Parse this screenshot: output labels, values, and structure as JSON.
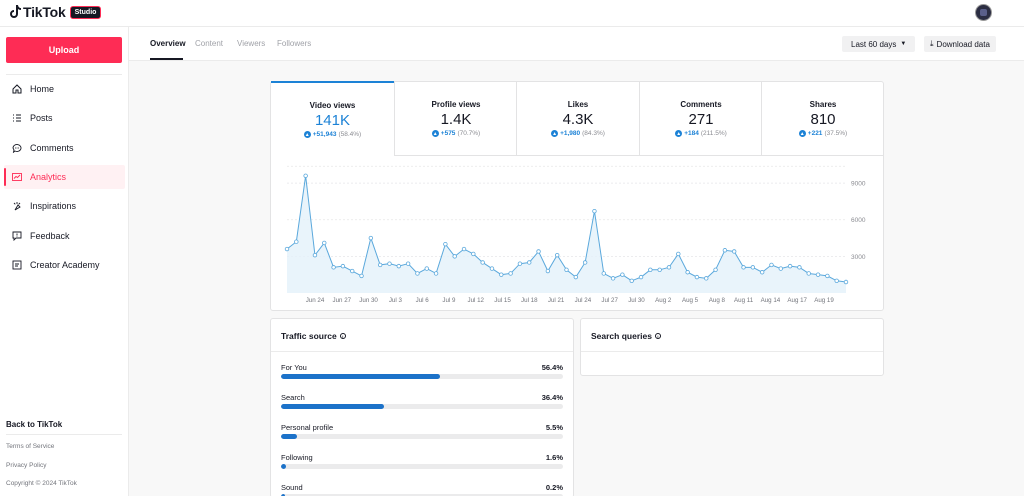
{
  "header": {
    "logo_text": "TikTok",
    "badge": "Studio",
    "avatar_icon": "user-avatar"
  },
  "sidebar": {
    "upload_label": "Upload",
    "items": [
      {
        "label": "Home",
        "icon": "home-icon"
      },
      {
        "label": "Posts",
        "icon": "list-icon"
      },
      {
        "label": "Comments",
        "icon": "comment-icon"
      },
      {
        "label": "Analytics",
        "icon": "analytics-icon",
        "active": true
      },
      {
        "label": "Inspirations",
        "icon": "sparkle-icon"
      },
      {
        "label": "Feedback",
        "icon": "feedback-icon"
      },
      {
        "label": "Creator Academy",
        "icon": "academy-icon"
      }
    ],
    "back_label": "Back to TikTok",
    "footer": [
      "Terms of Service",
      "Privacy Policy",
      "Copyright © 2024 TikTok"
    ]
  },
  "tabs": {
    "items": [
      "Overview",
      "Content",
      "Viewers",
      "Followers"
    ],
    "active": "Overview",
    "range_label": "Last 60 days",
    "download_label": "Download data"
  },
  "metrics": [
    {
      "label": "Video views",
      "value": "141K",
      "delta": "+51,943",
      "pct": "(58.4%)"
    },
    {
      "label": "Profile views",
      "value": "1.4K",
      "delta": "+575",
      "pct": "(70.7%)"
    },
    {
      "label": "Likes",
      "value": "4.3K",
      "delta": "+1,980",
      "pct": "(84.3%)"
    },
    {
      "label": "Comments",
      "value": "271",
      "delta": "+184",
      "pct": "(211.5%)"
    },
    {
      "label": "Shares",
      "value": "810",
      "delta": "+221",
      "pct": "(37.5%)"
    }
  ],
  "chart_data": {
    "type": "area",
    "series": [
      {
        "values": [
          3600,
          4200,
          9600,
          3100,
          4100,
          2100,
          2200,
          1800,
          1400,
          4500,
          2300,
          2400,
          2200,
          2400,
          1600,
          2000,
          1600,
          4000,
          3000,
          3600,
          3200,
          2500,
          2000,
          1500,
          1600,
          2400,
          2500,
          3400,
          1800,
          3100,
          1900,
          1300,
          2500,
          6700,
          1600,
          1200,
          1500,
          1000,
          1300,
          1900,
          1900,
          2100,
          3200,
          1700,
          1300,
          1200,
          1900,
          3500,
          3400,
          2100,
          2100,
          1700,
          2300,
          2000,
          2200,
          2100,
          1600,
          1500,
          1400,
          1000,
          900
        ]
      }
    ],
    "x_ticks": [
      "Jun 24",
      "Jun 27",
      "Jun 30",
      "Jul 3",
      "Jul 6",
      "Jul 9",
      "Jul 12",
      "Jul 15",
      "Jul 18",
      "Jul 21",
      "Jul 24",
      "Jul 27",
      "Jul 30",
      "Aug 2",
      "Aug 5",
      "Aug 8",
      "Aug 11",
      "Aug 14",
      "Aug 17",
      "Aug 19"
    ],
    "y_ticks": [
      "9000",
      "6000",
      "3000"
    ],
    "ylim": [
      0,
      10400
    ],
    "grid": true,
    "color": "#5aa8dc"
  },
  "traffic": {
    "title": "Traffic source",
    "sources": [
      {
        "name": "For You",
        "pct": "56.4%",
        "value": 56.4
      },
      {
        "name": "Search",
        "pct": "36.4%",
        "value": 36.4
      },
      {
        "name": "Personal profile",
        "pct": "5.5%",
        "value": 5.5
      },
      {
        "name": "Following",
        "pct": "1.6%",
        "value": 1.6
      },
      {
        "name": "Sound",
        "pct": "0.2%",
        "value": 0.2
      }
    ]
  },
  "search": {
    "title": "Search queries"
  }
}
